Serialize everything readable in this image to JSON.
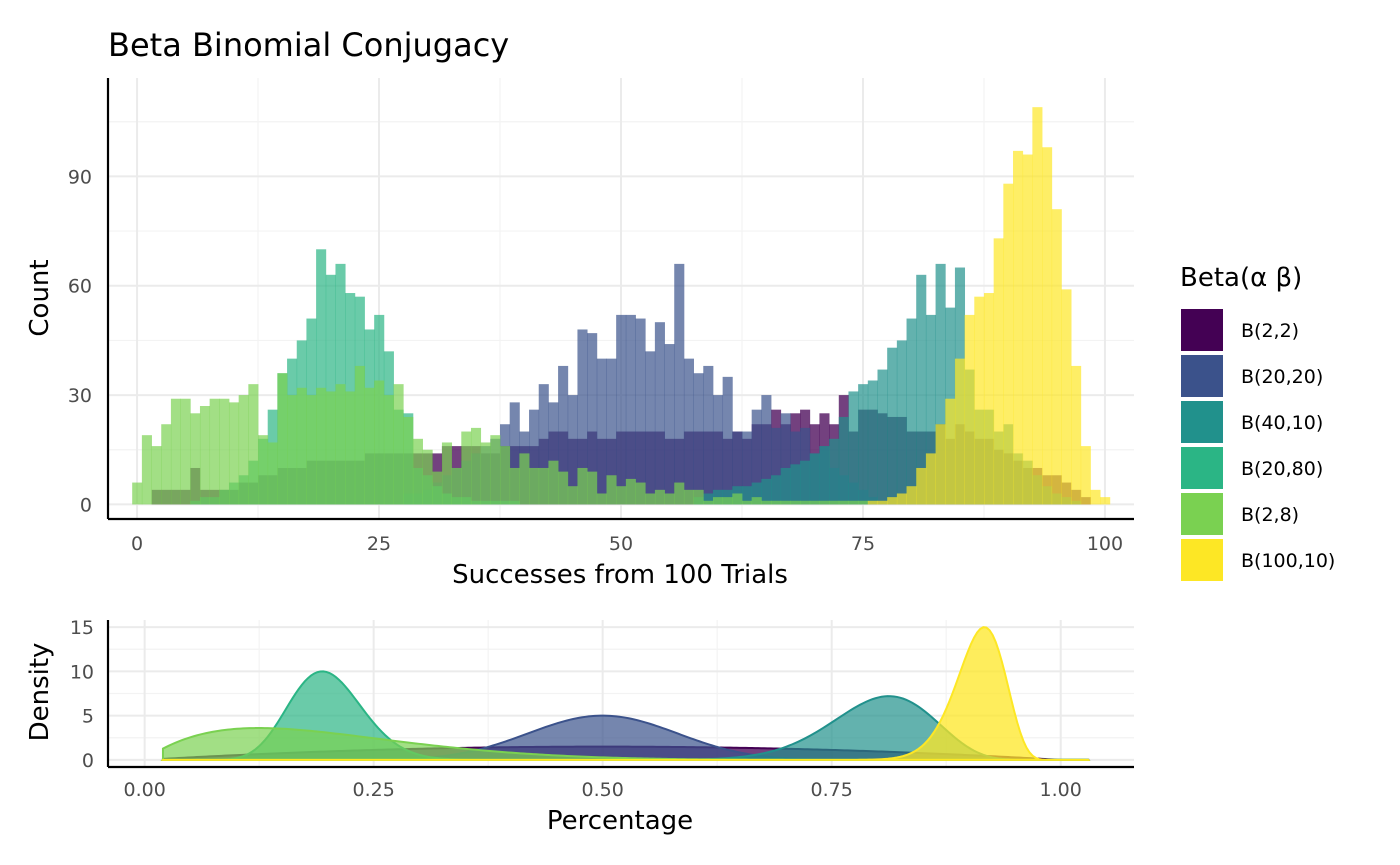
{
  "chart_data": [
    {
      "type": "histogram",
      "title": "Beta Binomial Conjugacy",
      "xlabel": "Successes from 100 Trials",
      "ylabel": "Count",
      "xlim": [
        -3,
        103
      ],
      "ylim": [
        -4,
        117
      ],
      "xticks": [
        0,
        25,
        50,
        75,
        100
      ],
      "yticks": [
        0,
        30,
        60,
        90
      ],
      "bin_width": 1,
      "grid": true,
      "legend_position": "right",
      "legend_title": "Beta(α β)",
      "series": [
        {
          "name": "B(2,2)",
          "color": "#440154",
          "opacity": 0.75,
          "x": [
            2,
            3,
            4,
            5,
            6,
            7,
            8,
            9,
            10,
            11,
            12,
            13,
            14,
            15,
            16,
            17,
            18,
            19,
            20,
            21,
            22,
            23,
            24,
            25,
            26,
            27,
            28,
            29,
            30,
            31,
            32,
            33,
            34,
            35,
            36,
            37,
            38,
            39,
            40,
            41,
            42,
            43,
            44,
            45,
            46,
            47,
            48,
            49,
            50,
            51,
            52,
            53,
            54,
            55,
            56,
            57,
            58,
            59,
            60,
            61,
            62,
            63,
            64,
            65,
            66,
            67,
            68,
            69,
            70,
            71,
            72,
            73,
            74,
            75,
            76,
            77,
            78,
            79,
            80,
            81,
            82,
            83,
            84,
            85,
            86,
            87,
            88,
            89,
            90,
            91,
            92,
            93,
            94,
            95,
            96,
            97,
            98
          ],
          "values": [
            4,
            4,
            4,
            4,
            10,
            4,
            4,
            4,
            4,
            6,
            6,
            8,
            8,
            10,
            10,
            10,
            12,
            12,
            12,
            12,
            12,
            12,
            14,
            14,
            14,
            14,
            14,
            14,
            14,
            14,
            16,
            16,
            16,
            16,
            14,
            14,
            16,
            16,
            16,
            16,
            18,
            20,
            20,
            18,
            18,
            20,
            18,
            18,
            20,
            20,
            20,
            20,
            20,
            18,
            18,
            20,
            20,
            20,
            20,
            18,
            20,
            18,
            22,
            22,
            26,
            22,
            25,
            26,
            22,
            25,
            22,
            30,
            20,
            26,
            26,
            25,
            24,
            24,
            20,
            20,
            20,
            22,
            18,
            22,
            20,
            18,
            18,
            15,
            14,
            12,
            10,
            10,
            8,
            8,
            6,
            4,
            2
          ]
        },
        {
          "name": "B(20,20)",
          "color": "#3b528b",
          "opacity": 0.7,
          "x": [
            28,
            29,
            30,
            31,
            32,
            33,
            34,
            35,
            36,
            37,
            38,
            39,
            40,
            41,
            42,
            43,
            44,
            45,
            46,
            47,
            48,
            49,
            50,
            51,
            52,
            53,
            54,
            55,
            56,
            57,
            58,
            59,
            60,
            61,
            62,
            63,
            64,
            65,
            66,
            67,
            68,
            69,
            70,
            71,
            72,
            73,
            74,
            75,
            76
          ],
          "values": [
            3,
            3,
            4,
            6,
            8,
            10,
            12,
            14,
            16,
            18,
            22,
            28,
            20,
            26,
            33,
            28,
            38,
            30,
            48,
            47,
            40,
            40,
            52,
            52,
            51,
            42,
            50,
            44,
            66,
            40,
            36,
            38,
            30,
            35,
            20,
            20,
            26,
            30,
            21,
            25,
            20,
            21,
            14,
            16,
            10,
            8,
            6,
            4,
            2
          ]
        },
        {
          "name": "B(40,10)",
          "color": "#21918c",
          "opacity": 0.7,
          "x": [
            58,
            59,
            60,
            61,
            62,
            63,
            64,
            65,
            66,
            67,
            68,
            69,
            70,
            71,
            72,
            73,
            74,
            75,
            76,
            77,
            78,
            79,
            80,
            81,
            82,
            83,
            84,
            85,
            86,
            87,
            88,
            89,
            90,
            91,
            92,
            93,
            94,
            95,
            96,
            97
          ],
          "values": [
            2,
            3,
            4,
            4,
            5,
            5,
            6,
            7,
            8,
            10,
            11,
            12,
            14,
            16,
            18,
            24,
            31,
            33,
            34,
            37,
            43,
            45,
            51,
            63,
            52,
            66,
            54,
            65,
            37,
            26,
            26,
            20,
            22,
            14,
            12,
            8,
            5,
            3,
            2,
            1
          ]
        },
        {
          "name": "B(20,80)",
          "color": "#2bb585",
          "opacity": 0.7,
          "x": [
            6,
            7,
            8,
            9,
            10,
            11,
            12,
            13,
            14,
            15,
            16,
            17,
            18,
            19,
            20,
            21,
            22,
            23,
            24,
            25,
            26,
            27,
            28,
            29,
            30,
            31,
            32,
            33,
            34,
            35,
            36,
            37,
            38,
            39
          ],
          "values": [
            1,
            2,
            2,
            4,
            6,
            8,
            12,
            18,
            26,
            36,
            40,
            45,
            51,
            70,
            63,
            66,
            58,
            57,
            48,
            52,
            42,
            26,
            25,
            10,
            8,
            5,
            3,
            2,
            2,
            1,
            1,
            1,
            1,
            1
          ]
        },
        {
          "name": "B(2,8)",
          "color": "#7ad151",
          "opacity": 0.7,
          "x": [
            0,
            1,
            2,
            3,
            4,
            5,
            6,
            7,
            8,
            9,
            10,
            11,
            12,
            13,
            14,
            15,
            16,
            17,
            18,
            19,
            20,
            21,
            22,
            23,
            24,
            25,
            26,
            27,
            28,
            29,
            30,
            31,
            32,
            33,
            34,
            35,
            36,
            37,
            38,
            39,
            40,
            41,
            42,
            43,
            44,
            45,
            46,
            47,
            48,
            49,
            50,
            51,
            52,
            53,
            54,
            55,
            56,
            57,
            58,
            59,
            60,
            61,
            62,
            63,
            64,
            65,
            66,
            67,
            68,
            69,
            70,
            71,
            72,
            73,
            74,
            75
          ],
          "values": [
            6,
            19,
            16,
            22,
            29,
            29,
            25,
            27,
            29,
            29,
            28,
            30,
            33,
            19,
            17,
            36,
            30,
            32,
            30,
            32,
            31,
            33,
            31,
            38,
            32,
            34,
            30,
            33,
            24,
            18,
            15,
            9,
            17,
            10,
            20,
            21,
            17,
            19,
            16,
            10,
            14,
            10,
            10,
            12,
            9,
            5,
            10,
            9,
            3,
            8,
            5,
            7,
            6,
            3,
            4,
            3,
            6,
            4,
            4,
            1,
            2,
            2,
            3,
            1,
            2,
            1,
            1,
            1,
            1,
            1,
            1,
            1,
            1,
            1,
            1,
            1
          ]
        },
        {
          "name": "B(100,10)",
          "color": "#fde725",
          "opacity": 0.7,
          "x": [
            76,
            77,
            78,
            79,
            80,
            81,
            82,
            83,
            84,
            85,
            86,
            87,
            88,
            89,
            90,
            91,
            92,
            93,
            94,
            95,
            96,
            97,
            98,
            99,
            100
          ],
          "values": [
            1,
            1,
            2,
            3,
            5,
            10,
            14,
            22,
            29,
            40,
            52,
            57,
            58,
            73,
            88,
            97,
            96,
            109,
            98,
            81,
            59,
            38,
            16,
            4,
            2
          ]
        }
      ]
    },
    {
      "type": "area",
      "xlabel": "Percentage",
      "ylabel": "Density",
      "xlim": [
        -0.04,
        1.08
      ],
      "ylim": [
        -0.8,
        15.8
      ],
      "xticks": [
        0.0,
        0.25,
        0.5,
        0.75,
        1.0
      ],
      "xtick_labels": [
        "0.00",
        "0.25",
        "0.50",
        "0.75",
        "1.00"
      ],
      "yticks": [
        0,
        5,
        10,
        15
      ],
      "grid": true,
      "series": [
        {
          "name": "B(2,2)",
          "alpha": 2,
          "beta": 2,
          "peak": 1.5,
          "color": "#440154",
          "opacity": 0.75
        },
        {
          "name": "B(20,20)",
          "alpha": 20,
          "beta": 20,
          "peak": 5.0,
          "color": "#3b528b",
          "opacity": 0.7
        },
        {
          "name": "B(40,10)",
          "alpha": 40,
          "beta": 10,
          "peak": 7.2,
          "color": "#21918c",
          "opacity": 0.7
        },
        {
          "name": "B(20,80)",
          "alpha": 20,
          "beta": 80,
          "peak": 10.0,
          "color": "#2bb585",
          "opacity": 0.7
        },
        {
          "name": "B(2,8)",
          "alpha": 2,
          "beta": 8,
          "peak": 3.6,
          "color": "#7ad151",
          "opacity": 0.7
        },
        {
          "name": "B(100,10)",
          "alpha": 100,
          "beta": 10,
          "peak": 15.0,
          "color": "#fde725",
          "opacity": 0.75
        }
      ]
    }
  ]
}
